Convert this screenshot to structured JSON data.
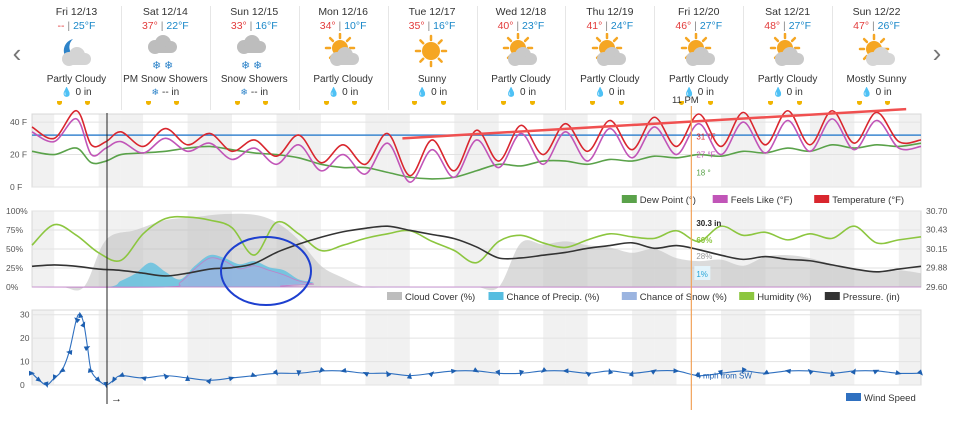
{
  "nav": {
    "prev_icon": "chevron-left-icon",
    "next_icon": "chevron-right-icon",
    "prev_glyph": "‹",
    "next_glyph": "›"
  },
  "days": [
    {
      "date": "Fri 12/13",
      "hi": "--",
      "lo": "25°F",
      "icon": "partly-cloudy-night-icon",
      "condition": "Partly Cloudy",
      "precip_icon": "rain-drop-icon",
      "precip": "0 in"
    },
    {
      "date": "Sat 12/14",
      "hi": "37°",
      "lo": "22°F",
      "icon": "snow-showers-icon",
      "condition": "PM Snow Showers",
      "precip_icon": "snowflake-icon",
      "precip": "-- in"
    },
    {
      "date": "Sun 12/15",
      "hi": "33°",
      "lo": "16°F",
      "icon": "snow-showers-icon",
      "condition": "Snow Showers",
      "precip_icon": "snowflake-icon",
      "precip": "-- in"
    },
    {
      "date": "Mon 12/16",
      "hi": "34°",
      "lo": "10°F",
      "icon": "partly-cloudy-day-icon",
      "condition": "Partly Cloudy",
      "precip_icon": "rain-drop-icon",
      "precip": "0 in"
    },
    {
      "date": "Tue 12/17",
      "hi": "35°",
      "lo": "16°F",
      "icon": "sunny-icon",
      "condition": "Sunny",
      "precip_icon": "rain-drop-icon",
      "precip": "0 in"
    },
    {
      "date": "Wed 12/18",
      "hi": "40°",
      "lo": "23°F",
      "icon": "partly-cloudy-day-icon",
      "condition": "Partly Cloudy",
      "precip_icon": "rain-drop-icon",
      "precip": "0 in"
    },
    {
      "date": "Thu 12/19",
      "hi": "41°",
      "lo": "24°F",
      "icon": "partly-cloudy-day-icon",
      "condition": "Partly Cloudy",
      "precip_icon": "rain-drop-icon",
      "precip": "0 in"
    },
    {
      "date": "Fri 12/20",
      "hi": "46°",
      "lo": "27°F",
      "icon": "partly-cloudy-day-icon",
      "condition": "Partly Cloudy",
      "precip_icon": "rain-drop-icon",
      "precip": "0 in"
    },
    {
      "date": "Sat 12/21",
      "hi": "48°",
      "lo": "27°F",
      "icon": "partly-cloudy-day-icon",
      "condition": "Partly Cloudy",
      "precip_icon": "rain-drop-icon",
      "precip": "0 in"
    },
    {
      "date": "Sun 12/22",
      "hi": "47°",
      "lo": "26°F",
      "icon": "mostly-sunny-icon",
      "condition": "Mostly Sunny",
      "precip_icon": "rain-drop-icon",
      "precip": "0 in"
    }
  ],
  "colors": {
    "temperature": "#d9262e",
    "feels_like": "#c155b8",
    "dew_point": "#5aa24a",
    "cloud_cover": "#bdbdbd",
    "precip": "#56bde0",
    "snow": "#9bb4e0",
    "humidity": "#8cc63f",
    "pressure": "#333333",
    "wind": "#2f70c0",
    "hover_line": "#f2a35a",
    "freezing": "#3b86d0",
    "trend": "#f05050",
    "circle": "#1d3fcf",
    "night": "#f1f1f1"
  },
  "chart_data": [
    {
      "type": "line",
      "id": "temperature",
      "x_unit": "hour since Fri 12/13 00:00",
      "x_range": [
        0,
        240
      ],
      "y_ticks": [
        "40 F",
        "20 F",
        "0 F"
      ],
      "y_range": [
        0,
        45
      ],
      "hover_time": "11 PM",
      "hover_x": 178,
      "freezing_line": 32,
      "series": [
        {
          "name": "Dew Point (°)",
          "key": "dew",
          "x": [
            0,
            6,
            12,
            16,
            20,
            24,
            30,
            36,
            42,
            48,
            54,
            60,
            66,
            72,
            78,
            84,
            90,
            96,
            102,
            108,
            114,
            120,
            126,
            132,
            138,
            144,
            150,
            156,
            162,
            168,
            174,
            180,
            186,
            192,
            198,
            204,
            210,
            216,
            222,
            228,
            234,
            240
          ],
          "y": [
            22,
            20,
            24,
            15,
            16,
            20,
            21,
            22,
            24,
            25,
            23,
            21,
            20,
            18,
            14,
            12,
            12,
            9,
            6,
            5,
            6,
            10,
            14,
            13,
            16,
            16,
            14,
            17,
            16,
            19,
            18,
            20,
            19,
            22,
            21,
            24,
            22,
            26,
            24,
            26,
            25,
            27
          ]
        },
        {
          "name": "Feels Like (°F)",
          "key": "feels",
          "x": [
            0,
            6,
            12,
            16,
            20,
            24,
            30,
            36,
            42,
            48,
            54,
            60,
            66,
            72,
            78,
            84,
            90,
            96,
            102,
            108,
            114,
            120,
            126,
            132,
            138,
            144,
            150,
            156,
            162,
            168,
            174,
            180,
            186,
            192,
            198,
            204,
            210,
            216,
            222,
            228,
            234,
            240
          ],
          "y": [
            34,
            28,
            42,
            20,
            24,
            28,
            21,
            30,
            22,
            27,
            17,
            24,
            14,
            26,
            10,
            20,
            8,
            27,
            3,
            23,
            6,
            29,
            12,
            33,
            14,
            34,
            16,
            36,
            18,
            37,
            20,
            39,
            20,
            40,
            21,
            41,
            22,
            42,
            23,
            41,
            24,
            25
          ]
        },
        {
          "name": "Temperature (°F)",
          "key": "temp",
          "x": [
            0,
            6,
            12,
            16,
            20,
            24,
            30,
            36,
            42,
            48,
            54,
            60,
            66,
            72,
            78,
            84,
            90,
            96,
            102,
            108,
            114,
            120,
            126,
            132,
            138,
            144,
            150,
            156,
            162,
            168,
            174,
            180,
            186,
            192,
            198,
            204,
            210,
            216,
            222,
            228,
            234,
            240
          ],
          "y": [
            37,
            30,
            47,
            26,
            28,
            34,
            25,
            36,
            26,
            33,
            22,
            29,
            19,
            32,
            15,
            26,
            14,
            33,
            7,
            29,
            10,
            35,
            16,
            38,
            20,
            39,
            22,
            41,
            23,
            43,
            25,
            45,
            25,
            46,
            26,
            47,
            26,
            47,
            27,
            46,
            28,
            29
          ]
        }
      ],
      "labels": [
        {
          "text": "31 °F",
          "series": "temp",
          "x": 178,
          "y": 31
        },
        {
          "text": "27 °F",
          "series": "feels",
          "x": 178,
          "y": 20
        },
        {
          "text": "18 °",
          "series": "dew",
          "x": 178,
          "y": 9
        }
      ],
      "trend_line": {
        "x": [
          100,
          236
        ],
        "y": [
          30,
          48
        ]
      }
    },
    {
      "type": "area",
      "id": "sky",
      "y_ticks_left": [
        "100%",
        "75%",
        "50%",
        "25%",
        "0%"
      ],
      "y_ticks_right": [
        "30.70",
        "30.43",
        "30.15",
        "29.88",
        "29.60"
      ],
      "y_range": [
        0,
        100
      ],
      "pressure_range": [
        29.6,
        30.7
      ],
      "series": [
        {
          "name": "Cloud Cover (%)",
          "key": "cloud",
          "x": [
            0,
            8,
            14,
            20,
            28,
            36,
            44,
            52,
            60,
            66,
            72,
            78,
            84,
            90,
            96,
            102,
            108,
            114,
            120,
            126,
            132,
            138,
            144,
            150,
            156,
            162,
            168,
            174,
            180,
            186,
            192,
            198,
            204,
            210,
            216,
            222,
            228,
            234,
            240
          ],
          "y": [
            0,
            0,
            0,
            62,
            75,
            88,
            92,
            96,
            95,
            85,
            62,
            28,
            12,
            0,
            0,
            0,
            0,
            0,
            0,
            0,
            58,
            56,
            60,
            55,
            52,
            45,
            50,
            38,
            34,
            36,
            28,
            40,
            42,
            38,
            30,
            24,
            20,
            22,
            18
          ]
        },
        {
          "name": "Chance of Precip. (%)",
          "key": "precip",
          "x": [
            0,
            20,
            24,
            28,
            32,
            36,
            40,
            44,
            48,
            52,
            56,
            60,
            64,
            68,
            72,
            76,
            80,
            240
          ],
          "y": [
            0,
            0,
            8,
            18,
            32,
            20,
            10,
            28,
            42,
            38,
            30,
            34,
            26,
            22,
            10,
            6,
            0,
            0
          ]
        },
        {
          "name": "Chance of Snow (%)",
          "key": "snow",
          "x": [
            0,
            36,
            40,
            44,
            48,
            52,
            56,
            60,
            64,
            68,
            72,
            76,
            80,
            240
          ],
          "y": [
            0,
            0,
            6,
            24,
            38,
            34,
            24,
            28,
            22,
            16,
            8,
            4,
            0,
            0
          ]
        },
        {
          "name": "Humidity (%)",
          "key": "humidity",
          "x": [
            0,
            6,
            12,
            18,
            24,
            30,
            36,
            42,
            48,
            54,
            60,
            66,
            72,
            78,
            84,
            90,
            96,
            102,
            108,
            114,
            120,
            126,
            132,
            138,
            144,
            150,
            156,
            162,
            168,
            174,
            180,
            186,
            192,
            198,
            204,
            210,
            216,
            222,
            228,
            234,
            240
          ],
          "y": [
            55,
            82,
            68,
            45,
            35,
            70,
            90,
            92,
            88,
            78,
            42,
            85,
            70,
            48,
            55,
            64,
            70,
            74,
            60,
            48,
            32,
            60,
            68,
            58,
            52,
            62,
            70,
            66,
            64,
            74,
            60,
            80,
            68,
            72,
            62,
            70,
            64,
            80,
            58,
            62,
            66
          ]
        },
        {
          "name": "Pressure. (in)",
          "key": "pressure",
          "x": [
            0,
            6,
            12,
            18,
            24,
            30,
            36,
            42,
            48,
            54,
            60,
            66,
            72,
            78,
            84,
            90,
            96,
            102,
            108,
            114,
            120,
            126,
            132,
            138,
            144,
            150,
            156,
            162,
            168,
            174,
            180,
            186,
            192,
            198,
            204,
            210,
            216,
            222,
            228,
            234,
            240
          ],
          "y": [
            29.9,
            29.92,
            29.9,
            29.86,
            29.84,
            29.8,
            29.76,
            29.8,
            29.86,
            29.88,
            29.94,
            30.1,
            30.22,
            30.32,
            30.4,
            30.45,
            30.48,
            30.42,
            30.36,
            30.3,
            30.18,
            30.02,
            30.02,
            30.06,
            30.1,
            30.16,
            30.2,
            30.24,
            30.16,
            30.2,
            30.14,
            30.06,
            30.0,
            30.04,
            30.0,
            29.98,
            29.92,
            29.86,
            29.82,
            29.86,
            29.9
          ]
        }
      ],
      "labels": [
        {
          "text": "30.3 in",
          "series": "pressure"
        },
        {
          "text": "60%",
          "series": "humidity"
        },
        {
          "text": "28%",
          "series": "cloud"
        },
        {
          "text": "1%",
          "series": "precip"
        }
      ]
    },
    {
      "type": "line",
      "id": "wind",
      "y_ticks": [
        "30",
        "20",
        "10",
        "0"
      ],
      "y_range": [
        0,
        32
      ],
      "series": [
        {
          "name": "Wind Speed",
          "key": "wind",
          "x": [
            0,
            2,
            4,
            6,
            8,
            10,
            12,
            13,
            14,
            15,
            16,
            18,
            20,
            22,
            24,
            30,
            36,
            42,
            48,
            54,
            60,
            66,
            72,
            78,
            84,
            90,
            96,
            102,
            108,
            114,
            120,
            126,
            132,
            138,
            144,
            150,
            156,
            162,
            168,
            174,
            180,
            186,
            192,
            198,
            204,
            210,
            216,
            222,
            228,
            234,
            240
          ],
          "y": [
            5,
            2,
            0,
            3,
            6,
            14,
            28,
            30,
            26,
            16,
            6,
            2,
            0,
            2,
            4,
            3,
            4,
            3,
            2,
            3,
            4,
            5,
            5,
            6,
            6,
            5,
            5,
            4,
            5,
            6,
            6,
            5,
            5,
            6,
            6,
            5,
            6,
            5,
            6,
            6,
            4,
            5,
            6,
            5,
            6,
            6,
            5,
            6,
            6,
            5,
            5
          ]
        }
      ],
      "labels": [
        {
          "text": "4 mph from SW"
        }
      ]
    }
  ],
  "legends": {
    "temperature": [
      {
        "label": "Dew Point (°)",
        "color_key": "dew_point"
      },
      {
        "label": "Feels Like (°F)",
        "color_key": "feels_like"
      },
      {
        "label": "Temperature (°F)",
        "color_key": "temperature"
      }
    ],
    "sky": [
      {
        "label": "Cloud Cover (%)",
        "color_key": "cloud_cover"
      },
      {
        "label": "Chance of Precip. (%)",
        "color_key": "precip"
      },
      {
        "label": "Chance of Snow (%)",
        "color_key": "snow"
      },
      {
        "label": "Humidity (%)",
        "color_key": "humidity"
      },
      {
        "label": "Pressure. (in)",
        "color_key": "pressure"
      }
    ],
    "wind": [
      {
        "label": "Wind Speed",
        "color_key": "wind"
      }
    ]
  },
  "arrow_glyph": "→"
}
